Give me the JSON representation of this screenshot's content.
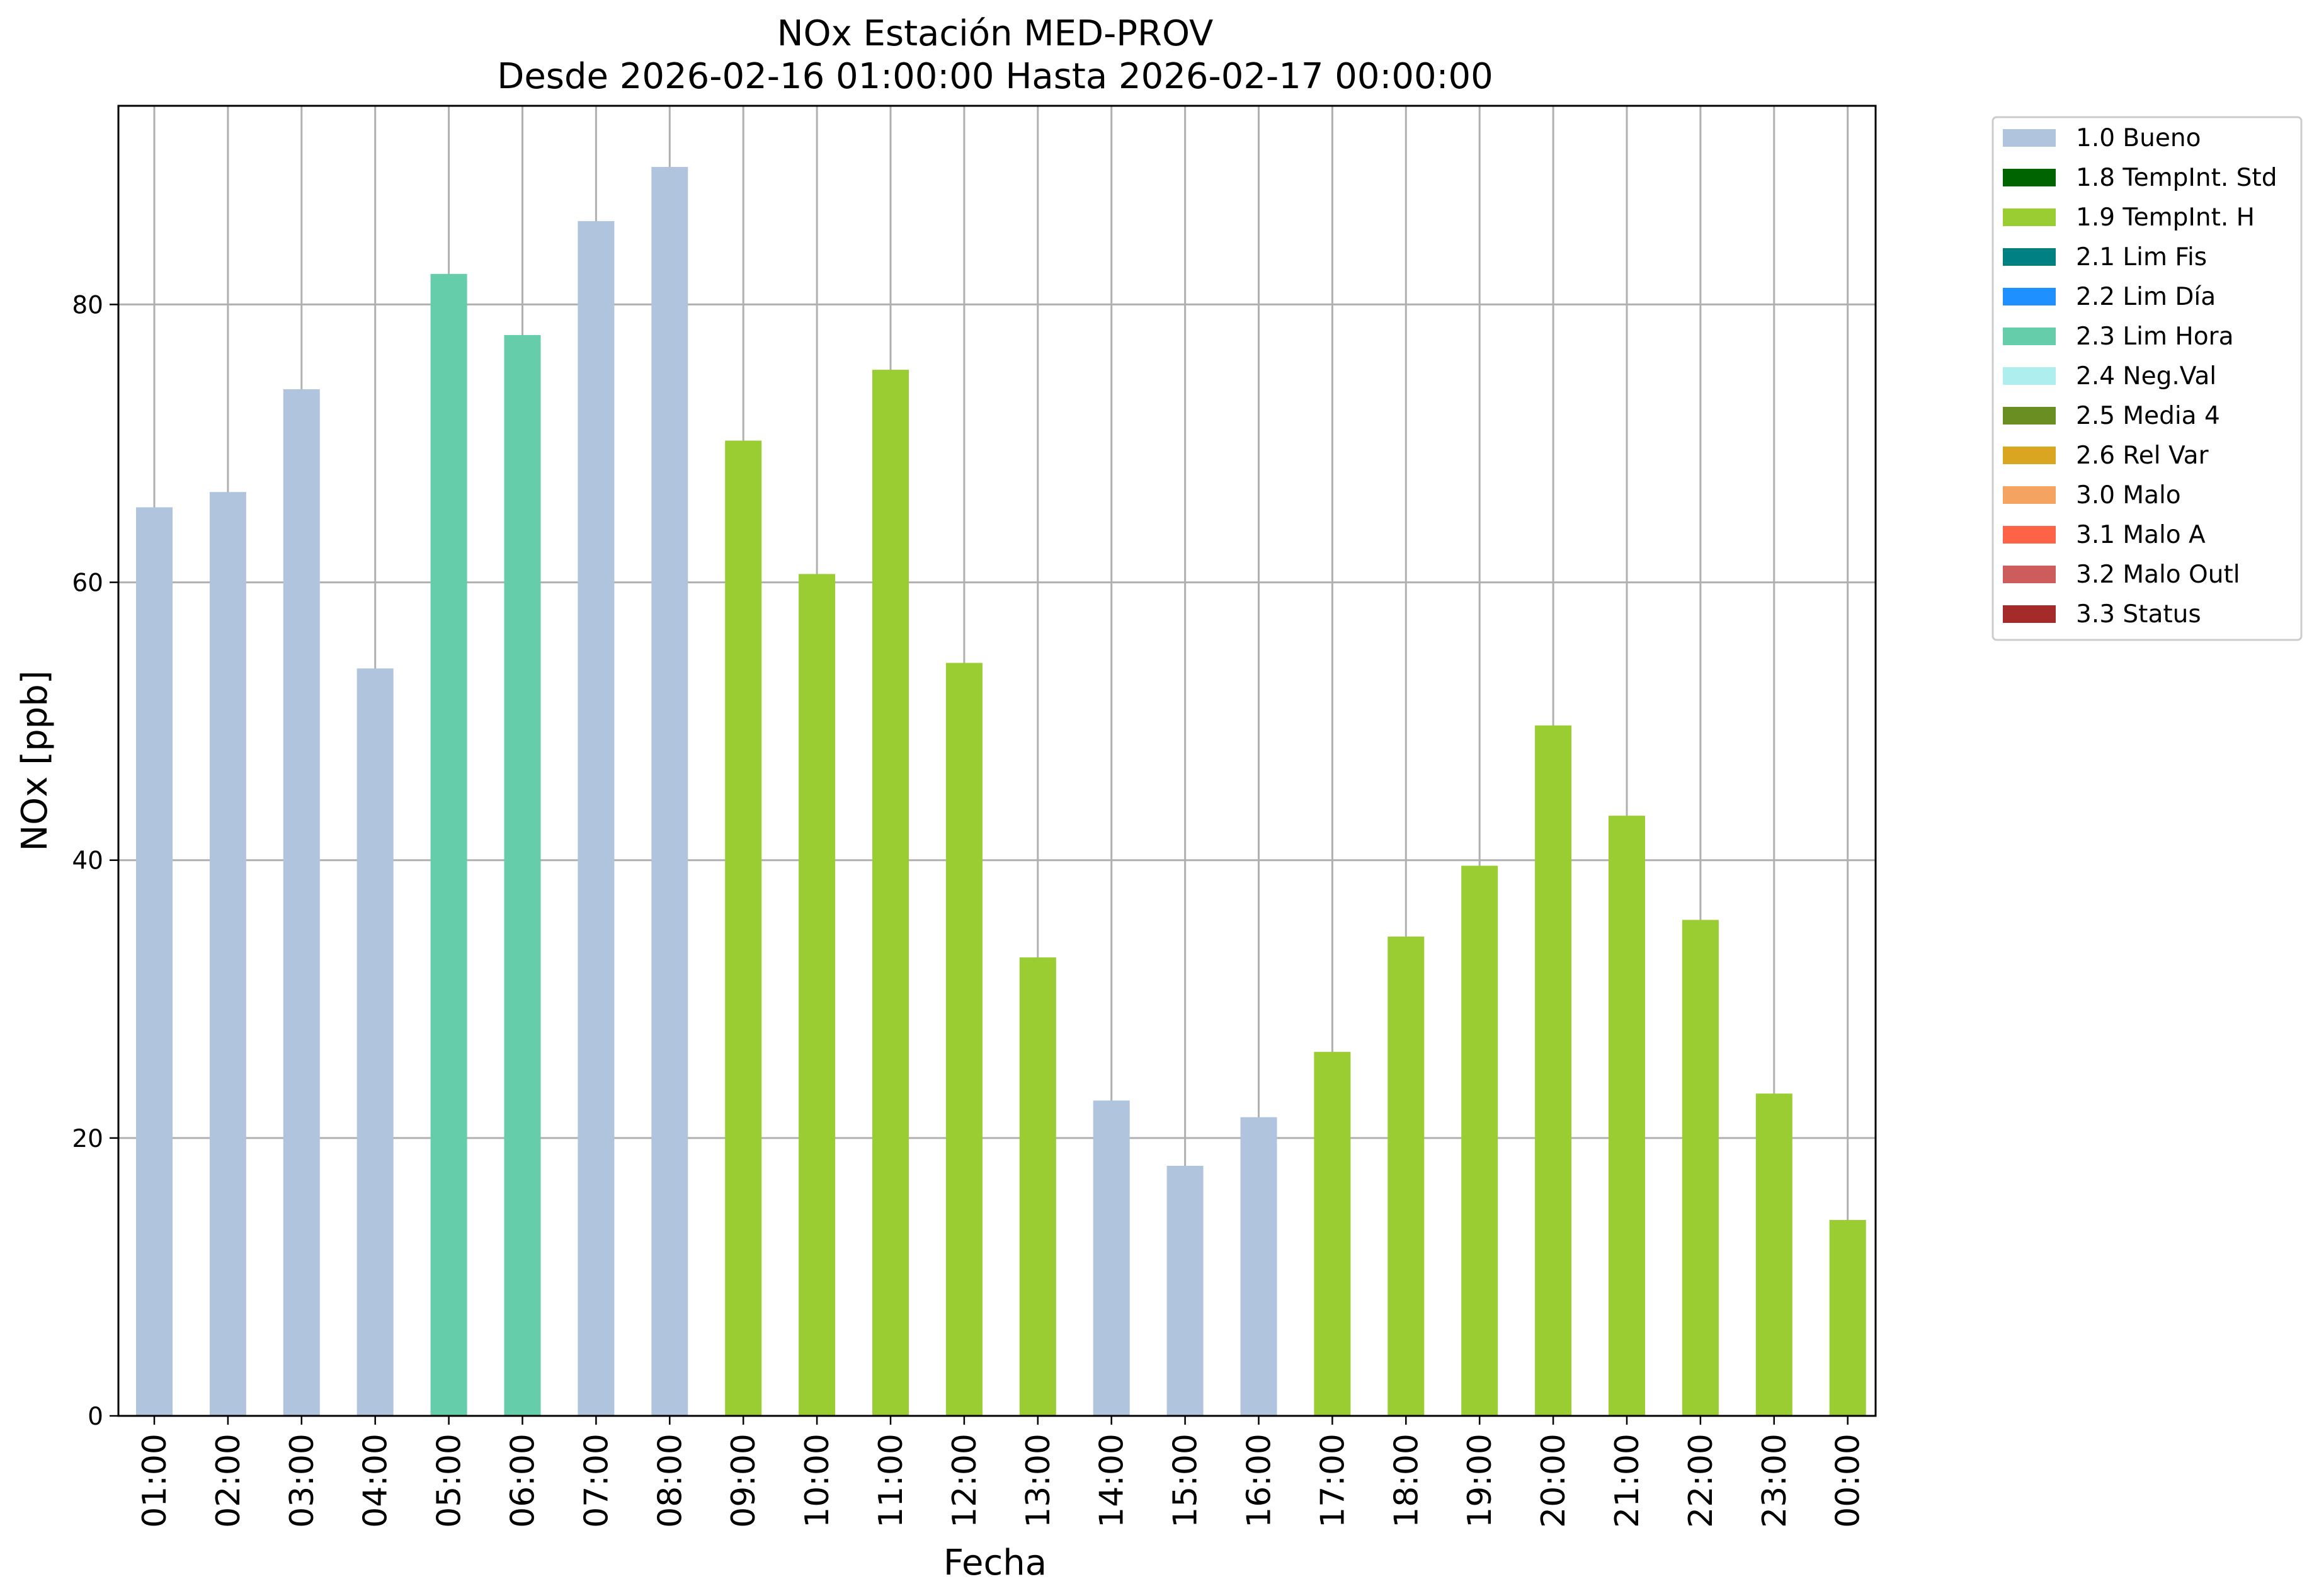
{
  "chart_data": {
    "type": "bar",
    "title": "NOx Estación MED-PROV",
    "subtitle": "Desde 2026-02-16 01:00:00 Hasta 2026-02-17 00:00:00",
    "xlabel": "Fecha",
    "ylabel": "NOx [ppb]",
    "ylim": [
      0,
      94.3
    ],
    "yticks": [
      0,
      20,
      40,
      60,
      80
    ],
    "grid": true,
    "legend_position": "outside-top-right",
    "categories": [
      "01:00",
      "02:00",
      "03:00",
      "04:00",
      "05:00",
      "06:00",
      "07:00",
      "08:00",
      "09:00",
      "10:00",
      "11:00",
      "12:00",
      "13:00",
      "14:00",
      "15:00",
      "16:00",
      "17:00",
      "18:00",
      "19:00",
      "20:00",
      "21:00",
      "22:00",
      "23:00",
      "00:00"
    ],
    "values": [
      65.4,
      66.5,
      73.9,
      53.8,
      82.2,
      77.8,
      86.0,
      89.9,
      70.2,
      60.6,
      75.3,
      54.2,
      33.0,
      22.7,
      18.0,
      21.5,
      26.2,
      34.5,
      39.6,
      49.7,
      43.2,
      35.7,
      23.2,
      14.1
    ],
    "flags": [
      "1.0 Bueno",
      "1.0 Bueno",
      "1.0 Bueno",
      "1.0 Bueno",
      "2.3 Lim Hora",
      "2.3 Lim Hora",
      "1.0 Bueno",
      "1.0 Bueno",
      "1.9 TempInt. H",
      "1.9 TempInt. H",
      "1.9 TempInt. H",
      "1.9 TempInt. H",
      "1.9 TempInt. H",
      "1.0 Bueno",
      "1.0 Bueno",
      "1.0 Bueno",
      "1.9 TempInt. H",
      "1.9 TempInt. H",
      "1.9 TempInt. H",
      "1.9 TempInt. H",
      "1.9 TempInt. H",
      "1.9 TempInt. H",
      "1.9 TempInt. H",
      "1.9 TempInt. H"
    ],
    "legend": [
      {
        "label": "1.0 Bueno",
        "color": "#b0c4de"
      },
      {
        "label": "1.8 TempInt. Std",
        "color": "#006400"
      },
      {
        "label": "1.9 TempInt. H",
        "color": "#9acd32"
      },
      {
        "label": "2.1 Lim Fis",
        "color": "#008080"
      },
      {
        "label": "2.2 Lim Día",
        "color": "#1e90ff"
      },
      {
        "label": "2.3 Lim Hora",
        "color": "#66cdaa"
      },
      {
        "label": "2.4 Neg.Val",
        "color": "#afeeee"
      },
      {
        "label": "2.5 Media 4",
        "color": "#6b8e23"
      },
      {
        "label": "2.6 Rel Var",
        "color": "#daa520"
      },
      {
        "label": "3.0 Malo",
        "color": "#f4a460"
      },
      {
        "label": "3.1 Malo A",
        "color": "#ff6347"
      },
      {
        "label": "3.2 Malo Outl",
        "color": "#cd5c5c"
      },
      {
        "label": "3.3 Status",
        "color": "#a52a2a"
      }
    ]
  }
}
